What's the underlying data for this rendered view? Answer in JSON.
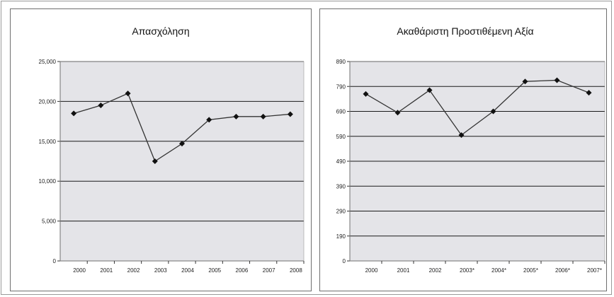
{
  "chart_data": [
    {
      "type": "line",
      "title": "Απασχόληση",
      "categories": [
        "2000",
        "2001",
        "2002",
        "2003",
        "2004",
        "2005",
        "2006",
        "2007",
        "2008"
      ],
      "values": [
        18500,
        19500,
        21000,
        12500,
        14700,
        17700,
        18100,
        18100,
        18400
      ],
      "y_ticks": [
        0,
        5000,
        10000,
        15000,
        20000,
        25000
      ],
      "y_tick_labels": [
        "0",
        "5,000",
        "10,000",
        "15,000",
        "20,000",
        "25,000"
      ],
      "ylim": [
        0,
        25000
      ],
      "grid": true,
      "legend": "none",
      "plot_background": "#e4e4e8",
      "line_color": "#333333",
      "marker": "diamond"
    },
    {
      "type": "line",
      "title": "Ακαθάριστη Προστιθέμενη Αξία",
      "categories": [
        "2000",
        "2001",
        "2002",
        "2003*",
        "2004*",
        "2005*",
        "2006*",
        "2007*"
      ],
      "values": [
        760,
        685,
        775,
        595,
        690,
        810,
        815,
        765
      ],
      "y_ticks": [
        0,
        190,
        290,
        390,
        490,
        590,
        690,
        790,
        890
      ],
      "y_tick_labels": [
        "0",
        "190",
        "290",
        "390",
        "490",
        "590",
        "690",
        "790",
        "890"
      ],
      "ylim": [
        90,
        890
      ],
      "grid": true,
      "legend": "none",
      "plot_background": "#e4e4e8",
      "line_color": "#333333",
      "marker": "diamond"
    }
  ]
}
